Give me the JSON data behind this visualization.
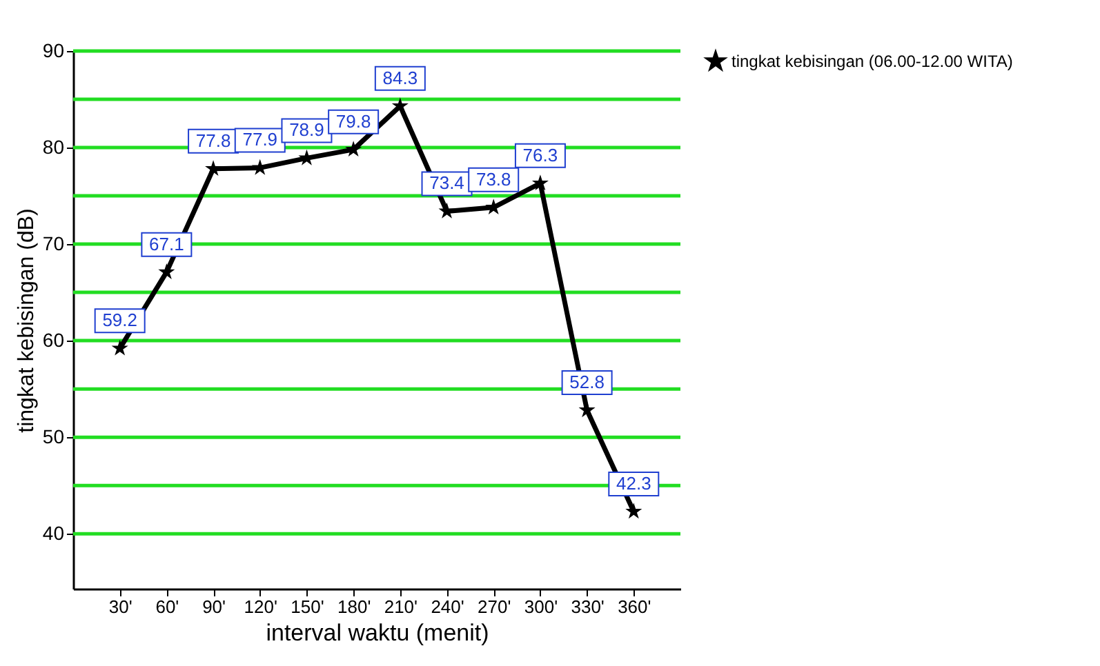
{
  "chart_data": {
    "type": "line",
    "xlabel": "interval waktu (menit)",
    "ylabel": "tingkat kebisingan (dB)",
    "categories": [
      "30'",
      "60'",
      "90'",
      "120'",
      "150'",
      "180'",
      "210'",
      "240'",
      "270'",
      "300'",
      "330'",
      "360'"
    ],
    "series": [
      {
        "name": "tingkat kebisingan (06.00-12.00 WITA)",
        "color": "#000000",
        "values": [
          59.2,
          67.1,
          77.8,
          77.9,
          78.9,
          79.8,
          84.3,
          73.4,
          73.8,
          76.3,
          52.8,
          42.3
        ]
      }
    ],
    "ylim": [
      34.3,
      90
    ],
    "yticks": [
      40,
      {
        "value": 45,
        "label": null
      },
      50,
      {
        "value": 55,
        "label": null
      },
      60,
      {
        "value": 65,
        "label": null
      },
      70,
      {
        "value": 75,
        "label": null
      },
      80,
      {
        "value": 85,
        "label": null
      },
      90
    ],
    "grid": "y",
    "marker": "star",
    "line_style": "solid",
    "data_labels": true,
    "legend": "right"
  }
}
